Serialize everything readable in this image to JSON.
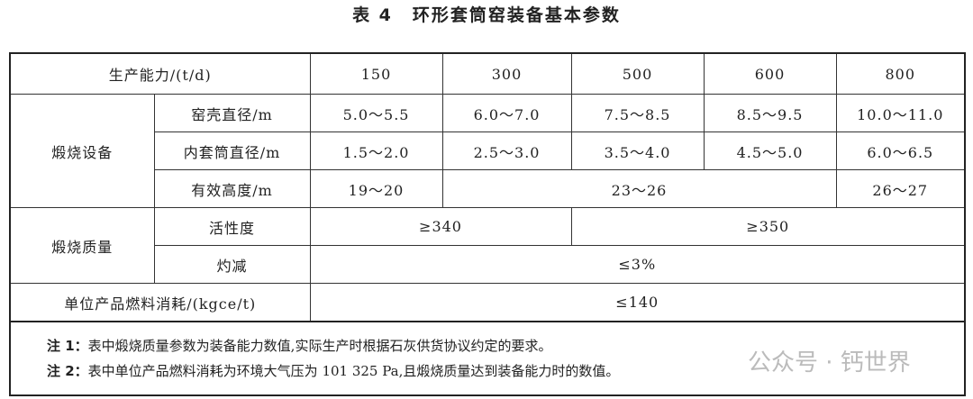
{
  "title": {
    "number": "表 4",
    "text": "环形套筒窑装备基本参数"
  },
  "header": {
    "label": "生产能力/(t/d)",
    "capacities": [
      "150",
      "300",
      "500",
      "600",
      "800"
    ]
  },
  "equipment": {
    "group": "煅烧设备",
    "shell_diameter": {
      "label": "窑壳直径/m",
      "values": [
        "5.0～5.5",
        "6.0～7.0",
        "7.5～8.5",
        "8.5～9.5",
        "10.0～11.0"
      ]
    },
    "inner_diameter": {
      "label": "内套筒直径/m",
      "values": [
        "1.5～2.0",
        "2.5～3.0",
        "3.5～4.0",
        "4.5～5.0",
        "6.0～6.5"
      ]
    },
    "height": {
      "label": "有效高度/m",
      "values": [
        "19～20",
        "23～26",
        "26～27"
      ]
    }
  },
  "quality": {
    "group": "煅烧质量",
    "activity": {
      "label": "活性度",
      "values": [
        "≥340",
        "≥350"
      ]
    },
    "loss": {
      "label": "灼减",
      "value": "≤3%"
    }
  },
  "fuel": {
    "label": "单位产品燃料消耗/(kgce/t)",
    "value": "≤140"
  },
  "notes": [
    {
      "label": "注 1：",
      "text": "表中煅烧质量参数为装备能力数值,实际生产时根据石灰供货协议约定的要求。"
    },
    {
      "label": "注 2：",
      "text": "表中单位产品燃料消耗为环境大气压为 101 325 Pa,且煅烧质量达到装备能力时的数值。"
    }
  ],
  "watermark": "公众号 · 钙世界"
}
